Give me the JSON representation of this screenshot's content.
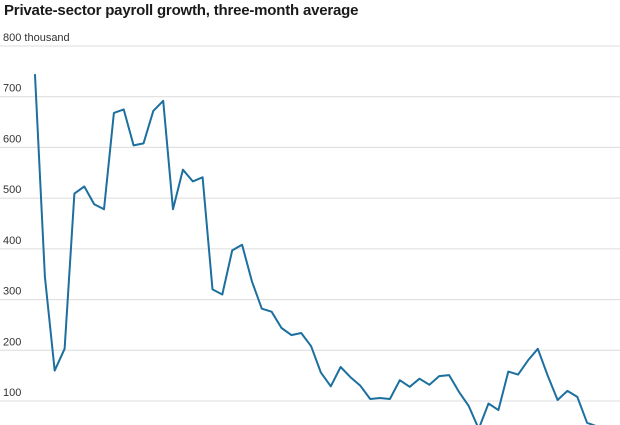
{
  "chart_data": {
    "type": "line",
    "title": "Private-sector payroll growth, three-month average",
    "ylim": [
      50,
      800
    ],
    "yticks": [
      {
        "value": 800,
        "label": "800 thousand"
      },
      {
        "value": 700,
        "label": "700"
      },
      {
        "value": 600,
        "label": "600"
      },
      {
        "value": 500,
        "label": "500"
      },
      {
        "value": 400,
        "label": "400"
      },
      {
        "value": 300,
        "label": "300"
      },
      {
        "value": 200,
        "label": "200"
      },
      {
        "value": 100,
        "label": "100"
      }
    ],
    "grid": true,
    "series": [
      {
        "color": "#1c6f9e",
        "values": [
          743,
          345,
          160,
          203,
          509,
          523,
          488,
          478,
          668,
          675,
          604,
          608,
          672,
          692,
          478,
          556,
          533,
          541,
          320,
          310,
          397,
          408,
          336,
          282,
          276,
          244,
          230,
          234,
          208,
          156,
          129,
          167,
          147,
          130,
          104,
          106,
          104,
          141,
          128,
          144,
          132,
          149,
          151,
          118,
          90,
          45,
          95,
          82,
          158,
          152,
          180,
          203,
          150,
          102,
          120,
          108,
          57,
          50
        ]
      }
    ]
  }
}
